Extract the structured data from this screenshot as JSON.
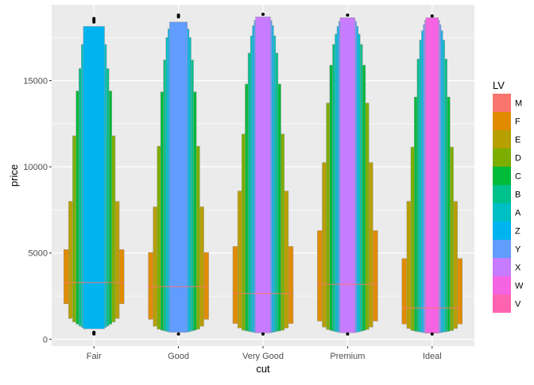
{
  "chart_data": {
    "type": "letter-value-plot",
    "xlabel": "cut",
    "ylabel": "price",
    "categories": [
      "Fair",
      "Good",
      "Very Good",
      "Premium",
      "Ideal"
    ],
    "ylim": [
      -400,
      19400
    ],
    "yticks": [
      0,
      5000,
      10000,
      15000
    ],
    "ytick_labels": [
      "0",
      "5000",
      "10000",
      "15000"
    ],
    "grid": true,
    "legend": {
      "title": "LV",
      "position": "right",
      "items": [
        {
          "label": "M",
          "color": "#F8766D"
        },
        {
          "label": "F",
          "color": "#E08B00"
        },
        {
          "label": "E",
          "color": "#B79F00"
        },
        {
          "label": "D",
          "color": "#7CAE00"
        },
        {
          "label": "C",
          "color": "#00BA38"
        },
        {
          "label": "B",
          "color": "#00C08B"
        },
        {
          "label": "A",
          "color": "#00BFC4"
        },
        {
          "label": "Z",
          "color": "#00B4F0"
        },
        {
          "label": "Y",
          "color": "#619CFF"
        },
        {
          "label": "X",
          "color": "#C77CFF"
        },
        {
          "label": "W",
          "color": "#F564E3"
        },
        {
          "label": "V",
          "color": "#FF64B0"
        }
      ]
    },
    "series": [
      {
        "category": "Fair",
        "median": 3282,
        "boxes": [
          {
            "level": "F",
            "lower": 2050,
            "upper": 5200
          },
          {
            "level": "E",
            "lower": 1200,
            "upper": 8000
          },
          {
            "level": "D",
            "lower": 1000,
            "upper": 11800
          },
          {
            "level": "C",
            "lower": 870,
            "upper": 14400
          },
          {
            "level": "B",
            "lower": 760,
            "upper": 15700
          },
          {
            "level": "A",
            "lower": 680,
            "upper": 17100
          },
          {
            "level": "Z",
            "lower": 600,
            "upper": 18150
          }
        ],
        "outliers": [
          18400,
          18500,
          18600,
          400,
          350,
          300
        ]
      },
      {
        "category": "Good",
        "median": 3050,
        "boxes": [
          {
            "level": "F",
            "lower": 1150,
            "upper": 5030
          },
          {
            "level": "E",
            "lower": 750,
            "upper": 7680
          },
          {
            "level": "D",
            "lower": 580,
            "upper": 11200
          },
          {
            "level": "C",
            "lower": 520,
            "upper": 14350
          },
          {
            "level": "B",
            "lower": 480,
            "upper": 16200
          },
          {
            "level": "A",
            "lower": 450,
            "upper": 17500
          },
          {
            "level": "Z",
            "lower": 420,
            "upper": 18000
          },
          {
            "level": "Y",
            "lower": 400,
            "upper": 18400
          }
        ],
        "outliers": [
          18700,
          18800,
          300
        ]
      },
      {
        "category": "Very Good",
        "median": 2648,
        "boxes": [
          {
            "level": "F",
            "lower": 910,
            "upper": 5380
          },
          {
            "level": "E",
            "lower": 650,
            "upper": 8600
          },
          {
            "level": "D",
            "lower": 520,
            "upper": 11900
          },
          {
            "level": "C",
            "lower": 480,
            "upper": 14800
          },
          {
            "level": "B",
            "lower": 450,
            "upper": 16600
          },
          {
            "level": "A",
            "lower": 420,
            "upper": 17600
          },
          {
            "level": "Z",
            "lower": 400,
            "upper": 18200
          },
          {
            "level": "Y",
            "lower": 380,
            "upper": 18500
          },
          {
            "level": "X",
            "lower": 365,
            "upper": 18700
          }
        ],
        "outliers": [
          18850,
          300
        ]
      },
      {
        "category": "Premium",
        "median": 3185,
        "boxes": [
          {
            "level": "F",
            "lower": 1050,
            "upper": 6300
          },
          {
            "level": "E",
            "lower": 700,
            "upper": 10250
          },
          {
            "level": "D",
            "lower": 560,
            "upper": 13700
          },
          {
            "level": "C",
            "lower": 500,
            "upper": 15900
          },
          {
            "level": "B",
            "lower": 460,
            "upper": 17100
          },
          {
            "level": "A",
            "lower": 430,
            "upper": 17700
          },
          {
            "level": "Z",
            "lower": 410,
            "upper": 18150
          },
          {
            "level": "Y",
            "lower": 390,
            "upper": 18450
          },
          {
            "level": "X",
            "lower": 375,
            "upper": 18650
          }
        ],
        "outliers": [
          18800,
          300
        ]
      },
      {
        "category": "Ideal",
        "median": 1810,
        "boxes": [
          {
            "level": "F",
            "lower": 880,
            "upper": 4680
          },
          {
            "level": "E",
            "lower": 620,
            "upper": 8000
          },
          {
            "level": "D",
            "lower": 500,
            "upper": 11150
          },
          {
            "level": "C",
            "lower": 460,
            "upper": 14050
          },
          {
            "level": "B",
            "lower": 430,
            "upper": 16250
          },
          {
            "level": "A",
            "lower": 410,
            "upper": 17350
          },
          {
            "level": "Z",
            "lower": 390,
            "upper": 17900
          },
          {
            "level": "Y",
            "lower": 375,
            "upper": 18250
          },
          {
            "level": "X",
            "lower": 360,
            "upper": 18500
          },
          {
            "level": "W",
            "lower": 350,
            "upper": 18650
          }
        ],
        "outliers": [
          18750,
          300
        ]
      }
    ]
  }
}
